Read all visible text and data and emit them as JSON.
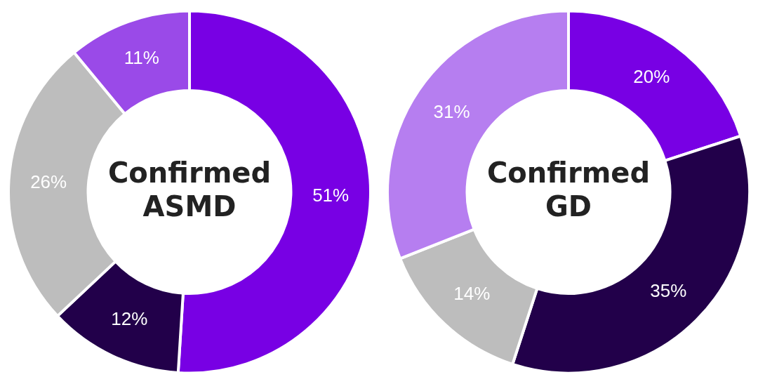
{
  "chart_data": [
    {
      "type": "donut",
      "title": "Confirmed ASMD",
      "categories": [
        null,
        null,
        null,
        null
      ],
      "values": [
        51,
        12,
        26,
        11
      ],
      "colors": [
        "#7800e4",
        "#22004a",
        "#bdbdbd",
        "#9a4ae8"
      ],
      "value_labels": [
        "51%",
        "12%",
        "26%",
        "11%"
      ]
    },
    {
      "type": "donut",
      "title": "Confirmed GD",
      "categories": [
        null,
        null,
        null,
        null
      ],
      "values": [
        20,
        35,
        14,
        31
      ],
      "colors": [
        "#7800e4",
        "#22004a",
        "#bdbdbd",
        "#b67ef0"
      ],
      "value_labels": [
        "20%",
        "35%",
        "14%",
        "31%"
      ]
    }
  ]
}
